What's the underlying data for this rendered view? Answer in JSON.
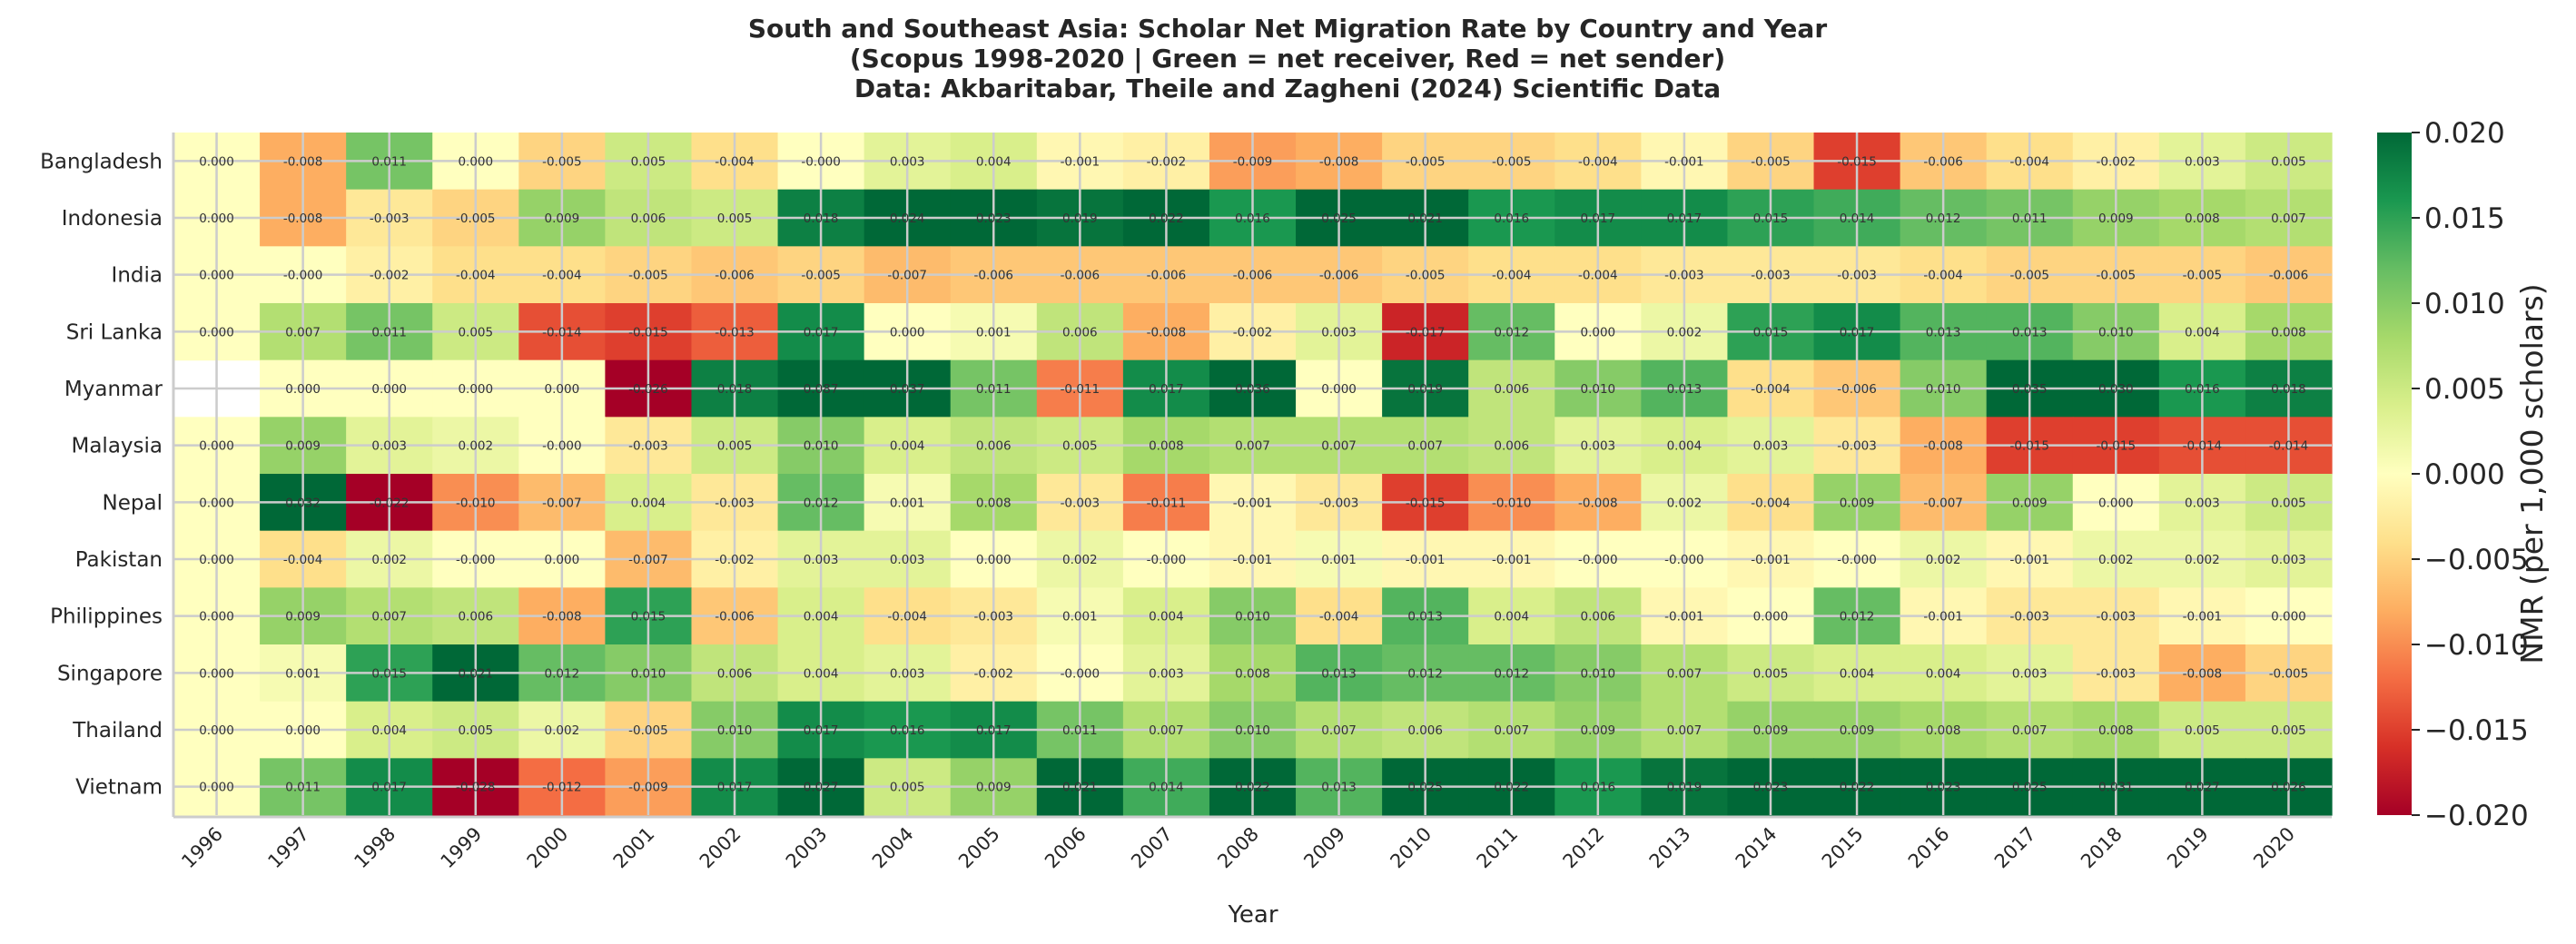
{
  "chart_data": {
    "type": "heatmap",
    "title_lines": [
      "South and Southeast Asia: Scholar Net Migration Rate by Country and Year",
      "(Scopus 1998-2020 | Green = net receiver, Red = net sender)",
      "Data: Akbaritabar, Theile and Zagheni (2024) Scientific Data"
    ],
    "xlabel": "Year",
    "ylabel": "",
    "colorbar_label": "NMR (per 1,000 scholars)",
    "colormap": "RdYlGn",
    "color_range": [
      -0.02,
      0.02
    ],
    "colorbar_ticks": [
      "−0.020",
      "−0.015",
      "−0.010",
      "−0.005",
      "0.000",
      "0.005",
      "0.010",
      "0.015",
      "0.020"
    ],
    "colormap_stops": [
      "#a50026",
      "#d73027",
      "#f46d43",
      "#fdae61",
      "#fee08b",
      "#ffffbf",
      "#d9ef8b",
      "#a6d96a",
      "#66bd63",
      "#1a9850",
      "#006837"
    ],
    "grid": true,
    "x": [
      "1996",
      "1997",
      "1998",
      "1999",
      "2000",
      "2001",
      "2002",
      "2003",
      "2004",
      "2005",
      "2006",
      "2007",
      "2008",
      "2009",
      "2010",
      "2011",
      "2012",
      "2013",
      "2014",
      "2015",
      "2016",
      "2017",
      "2018",
      "2019",
      "2020"
    ],
    "rows": [
      {
        "name": "Bangladesh",
        "values": [
          "0.000",
          "-0.008",
          "0.011",
          "0.000",
          "-0.005",
          "0.005",
          "-0.004",
          "-0.000",
          "0.003",
          "0.004",
          "-0.001",
          "-0.002",
          "-0.009",
          "-0.008",
          "-0.005",
          "-0.005",
          "-0.004",
          "-0.001",
          "-0.005",
          "-0.015",
          "-0.006",
          "-0.004",
          "-0.002",
          "0.003",
          "0.005"
        ]
      },
      {
        "name": "Indonesia",
        "values": [
          "0.000",
          "-0.008",
          "-0.003",
          "-0.005",
          "0.009",
          "0.006",
          "0.005",
          "0.018",
          "0.024",
          "0.023",
          "0.019",
          "0.022",
          "0.016",
          "0.025",
          "0.021",
          "0.016",
          "0.017",
          "0.017",
          "0.015",
          "0.014",
          "0.012",
          "0.011",
          "0.009",
          "0.008",
          "0.007"
        ]
      },
      {
        "name": "India",
        "values": [
          "0.000",
          "-0.000",
          "-0.002",
          "-0.004",
          "-0.004",
          "-0.005",
          "-0.006",
          "-0.005",
          "-0.007",
          "-0.006",
          "-0.006",
          "-0.006",
          "-0.006",
          "-0.006",
          "-0.005",
          "-0.004",
          "-0.004",
          "-0.003",
          "-0.003",
          "-0.003",
          "-0.004",
          "-0.005",
          "-0.005",
          "-0.005",
          "-0.006"
        ]
      },
      {
        "name": "Sri Lanka",
        "values": [
          "0.000",
          "0.007",
          "0.011",
          "0.005",
          "-0.014",
          "-0.015",
          "-0.013",
          "0.017",
          "0.000",
          "0.001",
          "0.006",
          "-0.008",
          "-0.002",
          "0.003",
          "-0.017",
          "0.012",
          "0.000",
          "0.002",
          "0.015",
          "0.017",
          "0.013",
          "0.013",
          "0.010",
          "0.004",
          "0.008"
        ]
      },
      {
        "name": "Myanmar",
        "values": [
          null,
          "0.000",
          "0.000",
          "0.000",
          "0.000",
          "-0.026",
          "0.018",
          "0.087",
          "0.037",
          "0.011",
          "-0.011",
          "0.017",
          "0.036",
          "0.000",
          "0.019",
          "0.006",
          "0.010",
          "0.013",
          "-0.004",
          "-0.006",
          "0.010",
          "0.035",
          "0.030",
          "0.016",
          "0.018"
        ]
      },
      {
        "name": "Malaysia",
        "values": [
          "0.000",
          "0.009",
          "0.003",
          "0.002",
          "-0.000",
          "-0.003",
          "0.005",
          "0.010",
          "0.004",
          "0.006",
          "0.005",
          "0.008",
          "0.007",
          "0.007",
          "0.007",
          "0.006",
          "0.003",
          "0.004",
          "0.003",
          "-0.003",
          "-0.008",
          "-0.015",
          "-0.015",
          "-0.014",
          "-0.014"
        ]
      },
      {
        "name": "Nepal",
        "values": [
          "0.000",
          "0.032",
          "-0.022",
          "-0.010",
          "-0.007",
          "0.004",
          "-0.003",
          "0.012",
          "0.001",
          "0.008",
          "-0.003",
          "-0.011",
          "-0.001",
          "-0.003",
          "-0.015",
          "-0.010",
          "-0.008",
          "0.002",
          "-0.004",
          "0.009",
          "-0.007",
          "0.009",
          "0.000",
          "0.003",
          "0.005"
        ]
      },
      {
        "name": "Pakistan",
        "values": [
          "0.000",
          "-0.004",
          "0.002",
          "-0.000",
          "0.000",
          "-0.007",
          "-0.002",
          "0.003",
          "0.003",
          "0.000",
          "0.002",
          "-0.000",
          "-0.001",
          "0.001",
          "-0.001",
          "-0.001",
          "-0.000",
          "-0.000",
          "-0.001",
          "-0.000",
          "0.002",
          "-0.001",
          "0.002",
          "0.002",
          "0.003"
        ]
      },
      {
        "name": "Philippines",
        "values": [
          "0.000",
          "0.009",
          "0.007",
          "0.006",
          "-0.008",
          "0.015",
          "-0.006",
          "0.004",
          "-0.004",
          "-0.003",
          "0.001",
          "0.004",
          "0.010",
          "-0.004",
          "0.013",
          "0.004",
          "0.006",
          "-0.001",
          "0.000",
          "0.012",
          "-0.001",
          "-0.003",
          "-0.003",
          "-0.001",
          "0.000"
        ]
      },
      {
        "name": "Singapore",
        "values": [
          "0.000",
          "0.001",
          "0.015",
          "0.021",
          "0.012",
          "0.010",
          "0.006",
          "0.004",
          "0.003",
          "-0.002",
          "-0.000",
          "0.003",
          "0.008",
          "0.013",
          "0.012",
          "0.012",
          "0.010",
          "0.007",
          "0.005",
          "0.004",
          "0.004",
          "0.003",
          "-0.003",
          "-0.008",
          "-0.005"
        ]
      },
      {
        "name": "Thailand",
        "values": [
          "0.000",
          "0.000",
          "0.004",
          "0.005",
          "0.002",
          "-0.005",
          "0.010",
          "0.017",
          "0.016",
          "0.017",
          "0.011",
          "0.007",
          "0.010",
          "0.007",
          "0.006",
          "0.007",
          "0.009",
          "0.007",
          "0.009",
          "0.009",
          "0.008",
          "0.007",
          "0.008",
          "0.005",
          "0.005"
        ]
      },
      {
        "name": "Vietnam",
        "values": [
          "0.000",
          "0.011",
          "0.017",
          "-0.028",
          "-0.012",
          "-0.009",
          "0.017",
          "0.027",
          "0.005",
          "0.009",
          "0.021",
          "0.014",
          "0.022",
          "0.013",
          "0.025",
          "0.022",
          "0.016",
          "0.019",
          "0.023",
          "0.022",
          "0.023",
          "0.025",
          "0.031",
          "0.027",
          "0.026"
        ]
      }
    ]
  }
}
